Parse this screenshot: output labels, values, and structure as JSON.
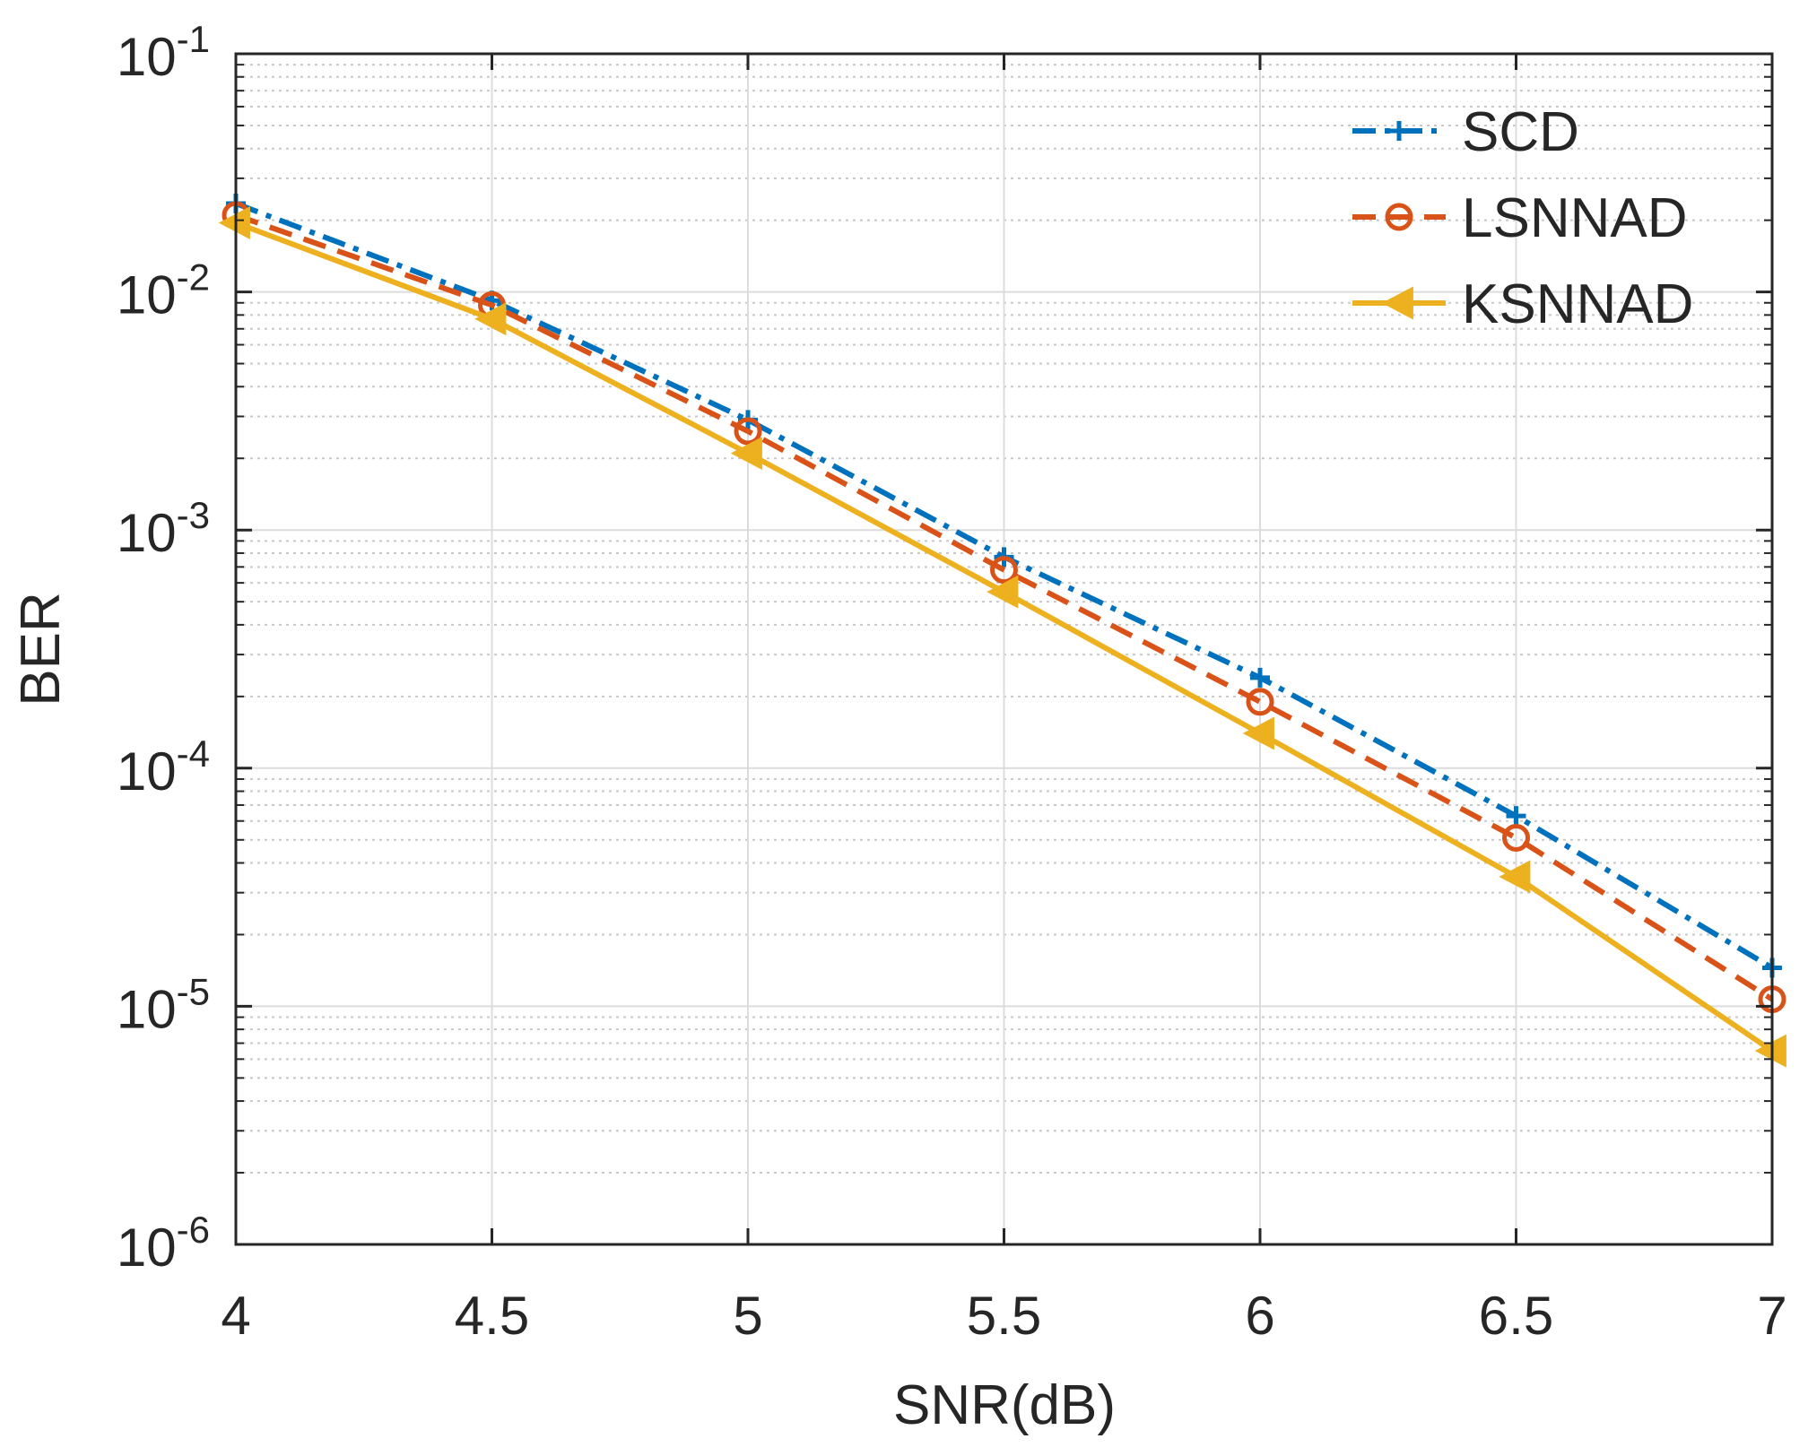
{
  "chart_data": {
    "type": "line",
    "title": "",
    "xlabel": "SNR(dB)",
    "ylabel": "BER",
    "xlim": [
      4,
      7
    ],
    "ylim": [
      1e-06,
      0.1
    ],
    "yscale": "log",
    "x_ticks": [
      4,
      4.5,
      5,
      5.5,
      6,
      6.5,
      7
    ],
    "x_tick_labels": [
      "4",
      "4.5",
      "5",
      "5.5",
      "6",
      "6.5",
      "7"
    ],
    "y_ticks": [
      {
        "base": "10",
        "exp": "-6",
        "value": 1e-06
      },
      {
        "base": "10",
        "exp": "-5",
        "value": 1e-05
      },
      {
        "base": "10",
        "exp": "-4",
        "value": 0.0001
      },
      {
        "base": "10",
        "exp": "-3",
        "value": 0.001
      },
      {
        "base": "10",
        "exp": "-2",
        "value": 0.01
      },
      {
        "base": "10",
        "exp": "-1",
        "value": 0.1
      }
    ],
    "grid": true,
    "minor_grid": true,
    "legend_position": "top-right",
    "x": [
      4,
      4.5,
      5,
      5.5,
      6,
      6.5,
      7
    ],
    "series": [
      {
        "name": "SCD",
        "values": [
          0.0235,
          0.0092,
          0.0029,
          0.00077,
          0.00024,
          6.3e-05,
          1.45e-05
        ],
        "color": "#0072BD",
        "line_style": "dash-dot",
        "marker": "plus"
      },
      {
        "name": "LSNNAD",
        "values": [
          0.021,
          0.0088,
          0.0026,
          0.00068,
          0.00019,
          5.1e-05,
          1.07e-05
        ],
        "color": "#D95319",
        "line_style": "dashed",
        "marker": "circle"
      },
      {
        "name": "KSNNAD",
        "values": [
          0.0195,
          0.0077,
          0.0021,
          0.00055,
          0.00014,
          3.5e-05,
          6.5e-06
        ],
        "color": "#EDB120",
        "line_style": "solid",
        "marker": "left-triangle"
      }
    ]
  }
}
